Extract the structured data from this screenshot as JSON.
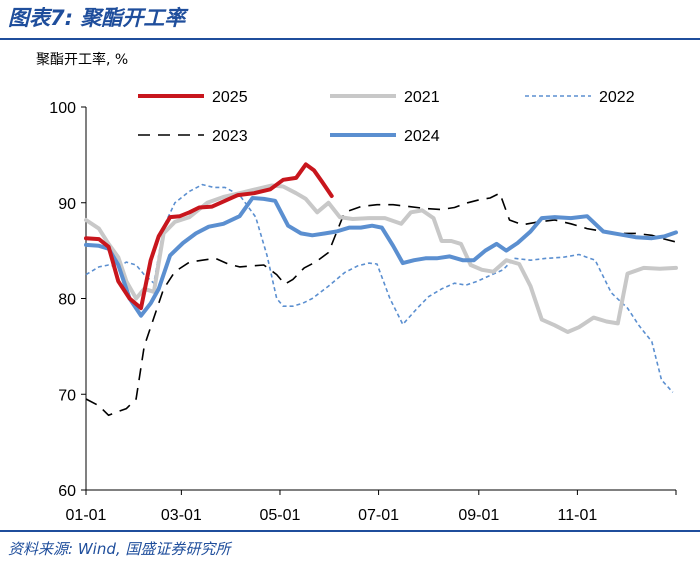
{
  "figure": {
    "title": "图表7:  聚酯开工率",
    "source": "资料来源:  Wind, 国盛证券研究所"
  },
  "colors": {
    "accent": "#1f4e9c",
    "2025": "#c8161d",
    "2021": "#c8c8c8",
    "2022": "#5b8fd0",
    "2023": "#000000",
    "2024": "#5b8fd0"
  },
  "chart_data": {
    "type": "line",
    "unit_label": "聚酯开工率, %",
    "x_ticks": [
      "01-01",
      "03-01",
      "05-01",
      "07-01",
      "09-01",
      "11-01"
    ],
    "x_tick_days": [
      0,
      59,
      120,
      181,
      243,
      304
    ],
    "xlim_days": [
      0,
      365
    ],
    "ylim": [
      60,
      100
    ],
    "y_ticks": [
      60,
      70,
      80,
      90,
      100
    ],
    "grid": false,
    "legend": "top",
    "x_unit": "day of year",
    "series": [
      {
        "name": "2025",
        "style": "solid-thick",
        "color": "#c8161d",
        "x": [
          0,
          8,
          14,
          20,
          27,
          34,
          40,
          45,
          52,
          58,
          64,
          70,
          78,
          86,
          94,
          104,
          114,
          122,
          130,
          136,
          141,
          146,
          152
        ],
        "y": [
          86.3,
          86.2,
          85.4,
          81.8,
          80.0,
          79.0,
          84.0,
          86.5,
          88.5,
          88.6,
          89.0,
          89.5,
          89.6,
          90.2,
          90.8,
          91.0,
          91.4,
          92.4,
          92.6,
          94.0,
          93.4,
          92.2,
          90.7
        ]
      },
      {
        "name": "2021",
        "style": "solid-thick",
        "color": "#c8c8c8",
        "x": [
          0,
          8,
          14,
          20,
          25,
          31,
          36,
          42,
          48,
          55,
          64,
          75,
          85,
          95,
          105,
          115,
          122,
          130,
          136,
          143,
          150,
          157,
          165,
          175,
          185,
          195,
          201,
          208,
          215,
          220,
          226,
          232,
          238,
          245,
          252,
          260,
          268,
          275,
          282,
          290,
          298,
          305,
          314,
          322,
          329,
          335,
          345,
          355,
          365
        ],
        "y": [
          88.2,
          87.3,
          85.7,
          84.3,
          81.8,
          80.0,
          81.0,
          80.7,
          86.8,
          88.0,
          88.5,
          90.0,
          90.6,
          91.0,
          91.4,
          91.8,
          91.7,
          91.0,
          90.4,
          89.0,
          90.0,
          88.5,
          88.3,
          88.4,
          88.4,
          87.8,
          89.0,
          89.2,
          88.4,
          86.0,
          86.0,
          85.7,
          83.5,
          83.0,
          82.8,
          84.0,
          83.6,
          81.3,
          77.8,
          77.2,
          76.5,
          77.0,
          78.0,
          77.6,
          77.4,
          82.6,
          83.2,
          83.1,
          83.2
        ]
      },
      {
        "name": "2022",
        "style": "dashed-thin",
        "color": "#5b8fd0",
        "x": [
          0,
          8,
          14,
          20,
          25,
          31,
          36,
          42,
          48,
          55,
          64,
          72,
          79,
          86,
          95,
          105,
          112,
          118,
          122,
          128,
          134,
          140,
          150,
          160,
          168,
          175,
          180,
          188,
          196,
          205,
          212,
          220,
          228,
          235,
          242,
          250,
          258,
          265,
          275,
          285,
          295,
          305,
          315,
          325,
          335,
          342,
          350,
          356,
          363
        ],
        "y": [
          82.5,
          83.3,
          83.5,
          83.3,
          83.8,
          83.5,
          82.5,
          81.6,
          87.5,
          90.0,
          91.2,
          91.9,
          91.6,
          91.6,
          90.8,
          88.5,
          84.5,
          80.0,
          79.2,
          79.2,
          79.5,
          80.0,
          81.3,
          82.7,
          83.4,
          83.7,
          83.6,
          80.0,
          77.3,
          79.0,
          80.2,
          81.0,
          81.6,
          81.4,
          81.8,
          82.4,
          83.0,
          84.2,
          84.0,
          84.2,
          84.3,
          84.6,
          84.0,
          80.6,
          79.0,
          77.2,
          75.5,
          71.5,
          70.2
        ]
      },
      {
        "name": "2023",
        "style": "dashed-long",
        "color": "#000000",
        "x": [
          0,
          8,
          14,
          20,
          25,
          31,
          36,
          42,
          48,
          55,
          64,
          72,
          80,
          88,
          95,
          103,
          110,
          118,
          123,
          128,
          135,
          142,
          150,
          160,
          170,
          180,
          190,
          200,
          210,
          220,
          228,
          236,
          243,
          250,
          256,
          262,
          270,
          280,
          290,
          300,
          310,
          320,
          330,
          340,
          350,
          358,
          365
        ],
        "y": [
          69.5,
          68.8,
          67.8,
          68.2,
          68.5,
          69.5,
          75.0,
          78.0,
          81.0,
          82.8,
          83.8,
          84.0,
          84.2,
          83.6,
          83.3,
          83.4,
          83.5,
          82.5,
          81.5,
          82.0,
          83.2,
          83.8,
          84.8,
          89.0,
          89.6,
          89.8,
          89.8,
          89.6,
          89.4,
          89.3,
          89.5,
          90.0,
          90.3,
          90.5,
          91.0,
          88.2,
          87.7,
          88.0,
          88.2,
          87.8,
          87.3,
          87.0,
          86.8,
          86.8,
          86.6,
          86.2,
          85.9
        ]
      },
      {
        "name": "2024",
        "style": "solid-thick",
        "color": "#5b8fd0",
        "x": [
          0,
          8,
          14,
          20,
          27,
          34,
          40,
          45,
          52,
          60,
          68,
          76,
          85,
          95,
          103,
          110,
          117,
          125,
          133,
          140,
          148,
          155,
          163,
          170,
          177,
          183,
          190,
          196,
          203,
          210,
          217,
          225,
          233,
          240,
          247,
          254,
          260,
          267,
          275,
          282,
          290,
          300,
          310,
          320,
          330,
          340,
          350,
          358,
          365
        ],
        "y": [
          85.6,
          85.5,
          85.2,
          83.5,
          80.0,
          78.2,
          79.5,
          81.0,
          84.5,
          85.8,
          86.8,
          87.5,
          87.8,
          88.6,
          90.5,
          90.4,
          90.2,
          87.6,
          86.8,
          86.6,
          86.8,
          87.0,
          87.4,
          87.4,
          87.6,
          87.4,
          85.5,
          83.7,
          84.0,
          84.2,
          84.2,
          84.4,
          84.0,
          84.0,
          85.0,
          85.7,
          85.0,
          85.8,
          87.0,
          88.4,
          88.5,
          88.4,
          88.6,
          87.0,
          86.7,
          86.4,
          86.3,
          86.5,
          86.9
        ]
      }
    ]
  }
}
